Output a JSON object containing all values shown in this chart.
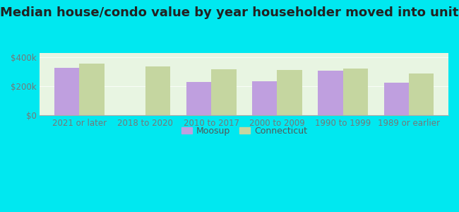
{
  "title": "Median house/condo value by year householder moved into unit",
  "categories": [
    "2021 or later",
    "2018 to 2020",
    "2010 to 2017",
    "2000 to 2009",
    "1990 to 1999",
    "1989 or earlier"
  ],
  "moosup_values": [
    330000,
    null,
    232000,
    237000,
    308000,
    226000
  ],
  "connecticut_values": [
    355000,
    337000,
    320000,
    312000,
    322000,
    287000
  ],
  "moosup_color": "#bf9fdf",
  "connecticut_color": "#c5d6a0",
  "background_outer": "#00e8f0",
  "background_inner_color": "#e8f5e2",
  "yticks": [
    0,
    200000,
    400000
  ],
  "ylim": [
    0,
    430000
  ],
  "ylabel_labels": [
    "$0",
    "$200k",
    "$400k"
  ],
  "legend_moosup": "Moosup",
  "legend_connecticut": "Connecticut",
  "title_fontsize": 13,
  "tick_fontsize": 8.5,
  "legend_fontsize": 9,
  "tick_color": "#777777",
  "bar_width": 0.38
}
